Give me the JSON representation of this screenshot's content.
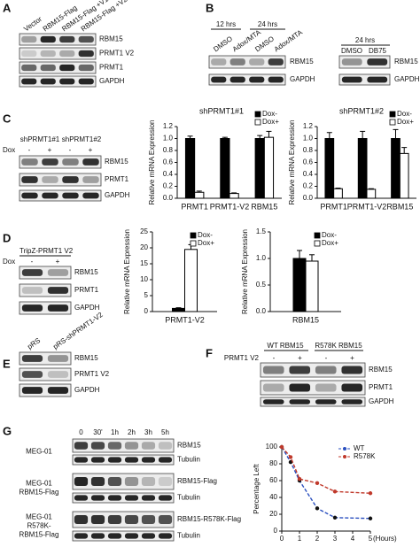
{
  "panels": {
    "A": {
      "label": "A",
      "lanes": [
        "Vector",
        "RBM15-Flag",
        "RBM15-Flag +V1",
        "RBM15-Flag +V2"
      ],
      "rows": [
        "RBM15",
        "PRMT1 V2",
        "PRMT1",
        "GAPDH"
      ]
    },
    "B": {
      "label": "B",
      "left": {
        "times": [
          "12 hrs",
          "24 hrs"
        ],
        "lanes": [
          "DMSO",
          "Adox/MTA",
          "DMSO",
          "Adox/MTA"
        ],
        "rows": [
          "RBM15",
          "GAPDH"
        ]
      },
      "right": {
        "time": "24 hrs",
        "lanes": [
          "DMSO",
          "DB75"
        ],
        "rows": [
          "RBM15",
          "GAPDH"
        ]
      }
    },
    "C": {
      "label": "C",
      "groups": [
        "shPRMT1#1",
        "shPRMT1#2"
      ],
      "dox": "Dox",
      "signs": [
        "-",
        "+",
        "-",
        "+"
      ],
      "rows": [
        "RBM15",
        "PRMT1",
        "GAPDH"
      ]
    },
    "D": {
      "label": "D",
      "construct": "TripZ-PRMT1 V2",
      "dox": "Dox",
      "signs": [
        "-",
        "+"
      ],
      "rows": [
        "RBM15",
        "PRMT1",
        "GAPDH"
      ]
    },
    "E": {
      "label": "E",
      "lanes": [
        "pRS",
        "pRS-shPRMT1-V2"
      ],
      "rows": [
        "RBM15",
        "PRMT1 V2",
        "GAPDH"
      ]
    },
    "F": {
      "label": "F",
      "treatment": "PRMT1 V2",
      "groups": [
        "WT RBM15",
        "R578K RBM15"
      ],
      "signs": [
        "-",
        "+",
        "-",
        "+"
      ],
      "rows": [
        "RBM15",
        "PRMT1",
        "GAPDH"
      ]
    },
    "G": {
      "label": "G",
      "times": [
        "0",
        "30'",
        "1h",
        "2h",
        "3h",
        "5h"
      ],
      "blots": [
        {
          "cell_lines": [
            "MEG-01"
          ],
          "rows": [
            "RBM15",
            "Tubulin"
          ]
        },
        {
          "cell_lines": [
            "MEG-01",
            "RBM15-Flag"
          ],
          "rows": [
            "RBM15-Flag",
            "Tubulin"
          ]
        },
        {
          "cell_lines": [
            "MEG-01",
            "R578K-",
            "RBM15-Flag"
          ],
          "rows": [
            "RBM15-R578K-Flag",
            "Tubulin"
          ]
        }
      ]
    }
  },
  "chart_data": [
    {
      "type": "bar",
      "title": "shPRMT1#1",
      "y_label": "Relative mRNA Expression",
      "categories": [
        "PRMT1",
        "PRMT1-V2",
        "RBM15"
      ],
      "series": [
        {
          "name": "Dox-",
          "color": "#000000",
          "values": [
            1.0,
            1.0,
            1.0
          ],
          "errors": [
            0.04,
            0.02,
            0.05
          ]
        },
        {
          "name": "Dox+",
          "color": "#ffffff",
          "values": [
            0.1,
            0.08,
            1.02
          ],
          "errors": [
            0.02,
            0.01,
            0.1
          ]
        }
      ],
      "ylim": [
        0,
        1.2
      ],
      "yticks": [
        {
          "value": 0,
          "label": "0.0"
        },
        0.2,
        0.4,
        0.6,
        0.8,
        {
          "value": 1,
          "label": "1.0"
        },
        1.2
      ]
    },
    {
      "type": "bar",
      "title": "shPRMT1#2",
      "y_label": "Relative mRNA Expression",
      "categories": [
        "PRMT1",
        "PRMT1-V2",
        "RBM15"
      ],
      "series": [
        {
          "name": "Dox-",
          "color": "#000000",
          "values": [
            1.0,
            1.0,
            1.0
          ],
          "errors": [
            0.1,
            0.12,
            0.15
          ]
        },
        {
          "name": "Dox+",
          "color": "#ffffff",
          "values": [
            0.16,
            0.15,
            0.75
          ],
          "errors": [
            0.01,
            0.01,
            0.1
          ]
        }
      ],
      "ylim": [
        0,
        1.2
      ],
      "yticks": [
        {
          "value": 0,
          "label": "0.0"
        },
        0.2,
        0.4,
        0.6,
        0.8,
        {
          "value": 1,
          "label": "1.0"
        },
        1.2
      ]
    },
    {
      "type": "bar",
      "y_label": "Relative mRNA Expression",
      "categories": [
        "PRMT1-V2"
      ],
      "series": [
        {
          "name": "Dox-",
          "color": "#000000",
          "values": [
            1
          ],
          "errors": [
            0.2
          ]
        },
        {
          "name": "Dox+",
          "color": "#ffffff",
          "values": [
            19.5
          ],
          "errors": [
            1.5
          ]
        }
      ],
      "ylim": [
        0,
        25
      ],
      "yticks": [
        0,
        5,
        10,
        15,
        20,
        25
      ]
    },
    {
      "type": "bar",
      "y_label": "Relative mRNA Expression",
      "categories": [
        "RBM15"
      ],
      "series": [
        {
          "name": "Dox-",
          "color": "#000000",
          "values": [
            1.0
          ],
          "errors": [
            0.15
          ]
        },
        {
          "name": "Dox+",
          "color": "#ffffff",
          "values": [
            0.95
          ],
          "errors": [
            0.12
          ]
        }
      ],
      "ylim": [
        0,
        1.5
      ],
      "yticks": [
        {
          "value": 0,
          "label": "0.0"
        },
        0.5,
        {
          "value": 1,
          "label": "1.0"
        },
        1.5
      ]
    },
    {
      "type": "line",
      "y_label": "Percentage Left",
      "x_label": "(Hours)",
      "x": [
        0,
        0.5,
        1,
        2,
        3,
        5
      ],
      "series": [
        {
          "name": "WT",
          "color": "#2a4fbf",
          "values": [
            100,
            82,
            60,
            27,
            16,
            15
          ]
        },
        {
          "name": "R578K",
          "color": "#c0392b",
          "values": [
            100,
            88,
            62,
            57,
            47,
            45
          ]
        }
      ],
      "xlim": [
        0,
        5
      ],
      "xticks": [
        0,
        1,
        2,
        3,
        4,
        5
      ],
      "ylim": [
        0,
        100
      ],
      "yticks": [
        0,
        20,
        40,
        60,
        80,
        100
      ]
    }
  ]
}
